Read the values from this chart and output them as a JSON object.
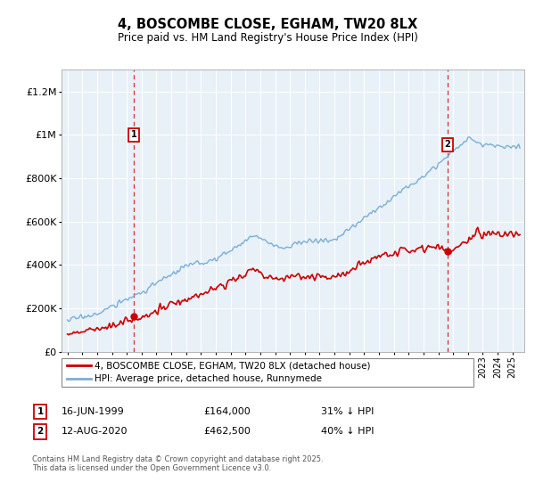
{
  "title": "4, BOSCOMBE CLOSE, EGHAM, TW20 8LX",
  "subtitle": "Price paid vs. HM Land Registry's House Price Index (HPI)",
  "legend_line1": "4, BOSCOMBE CLOSE, EGHAM, TW20 8LX (detached house)",
  "legend_line2": "HPI: Average price, detached house, Runnymede",
  "footnote": "Contains HM Land Registry data © Crown copyright and database right 2025.\nThis data is licensed under the Open Government Licence v3.0.",
  "transaction1_date": "16-JUN-1999",
  "transaction1_price": "£164,000",
  "transaction1_hpi": "31% ↓ HPI",
  "transaction2_date": "12-AUG-2020",
  "transaction2_price": "£462,500",
  "transaction2_hpi": "40% ↓ HPI",
  "red_color": "#cc0000",
  "blue_color": "#7bafd4",
  "dashed_color": "#cc0000",
  "grid_color": "#ccddee",
  "background_color": "#ffffff",
  "chart_bg": "#e8f0f8",
  "ylim": [
    0,
    1300000
  ],
  "yticks": [
    0,
    200000,
    400000,
    600000,
    800000,
    1000000,
    1200000
  ],
  "ytick_labels": [
    "£0",
    "£200K",
    "£400K",
    "£600K",
    "£800K",
    "£1M",
    "£1.2M"
  ],
  "t1_year": 1999.46,
  "t2_year": 2020.62,
  "t1_price": 164000,
  "t2_price": 462500
}
